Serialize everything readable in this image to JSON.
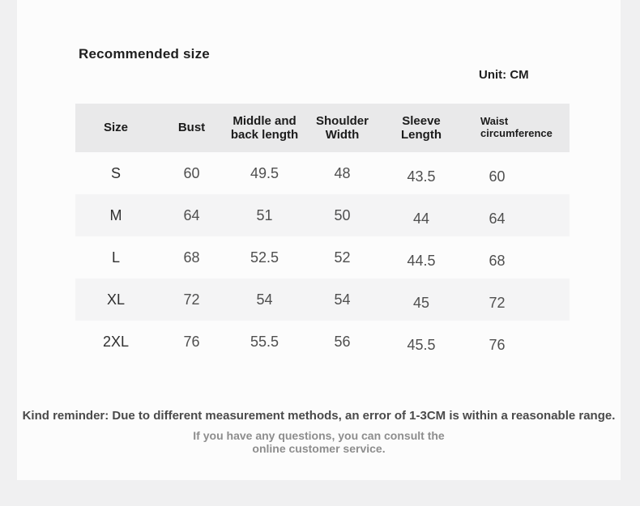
{
  "page": {
    "background_color": "#f0f0f1",
    "card_background_color": "#fcfcfc"
  },
  "header": {
    "title": "Recommended size",
    "unit_label": "Unit: CM"
  },
  "size_table": {
    "header_bg": "#e9e9ea",
    "alt_row_bg": "#f4f4f5",
    "columns": [
      "Size",
      "Bust",
      "Middle and\nback length",
      "Shoulder\nWidth",
      "Sleeve\nLength",
      "Waist\ncircumference"
    ],
    "rows": [
      [
        "S",
        "60",
        "49.5",
        "48",
        "43.5",
        "60"
      ],
      [
        "M",
        "64",
        "51",
        "50",
        "44",
        "64"
      ],
      [
        "L",
        "68",
        "52.5",
        "52",
        "44.5",
        "68"
      ],
      [
        "XL",
        "72",
        "54",
        "54",
        "45",
        "72"
      ],
      [
        "2XL",
        "76",
        "55.5",
        "56",
        "45.5",
        "76"
      ]
    ]
  },
  "footer": {
    "reminder": "Kind reminder: Due to different measurement methods, an error of 1-3CM is within a reasonable range.",
    "note_line1": "If you have any questions, you can consult the",
    "note_line2": "online customer service."
  }
}
